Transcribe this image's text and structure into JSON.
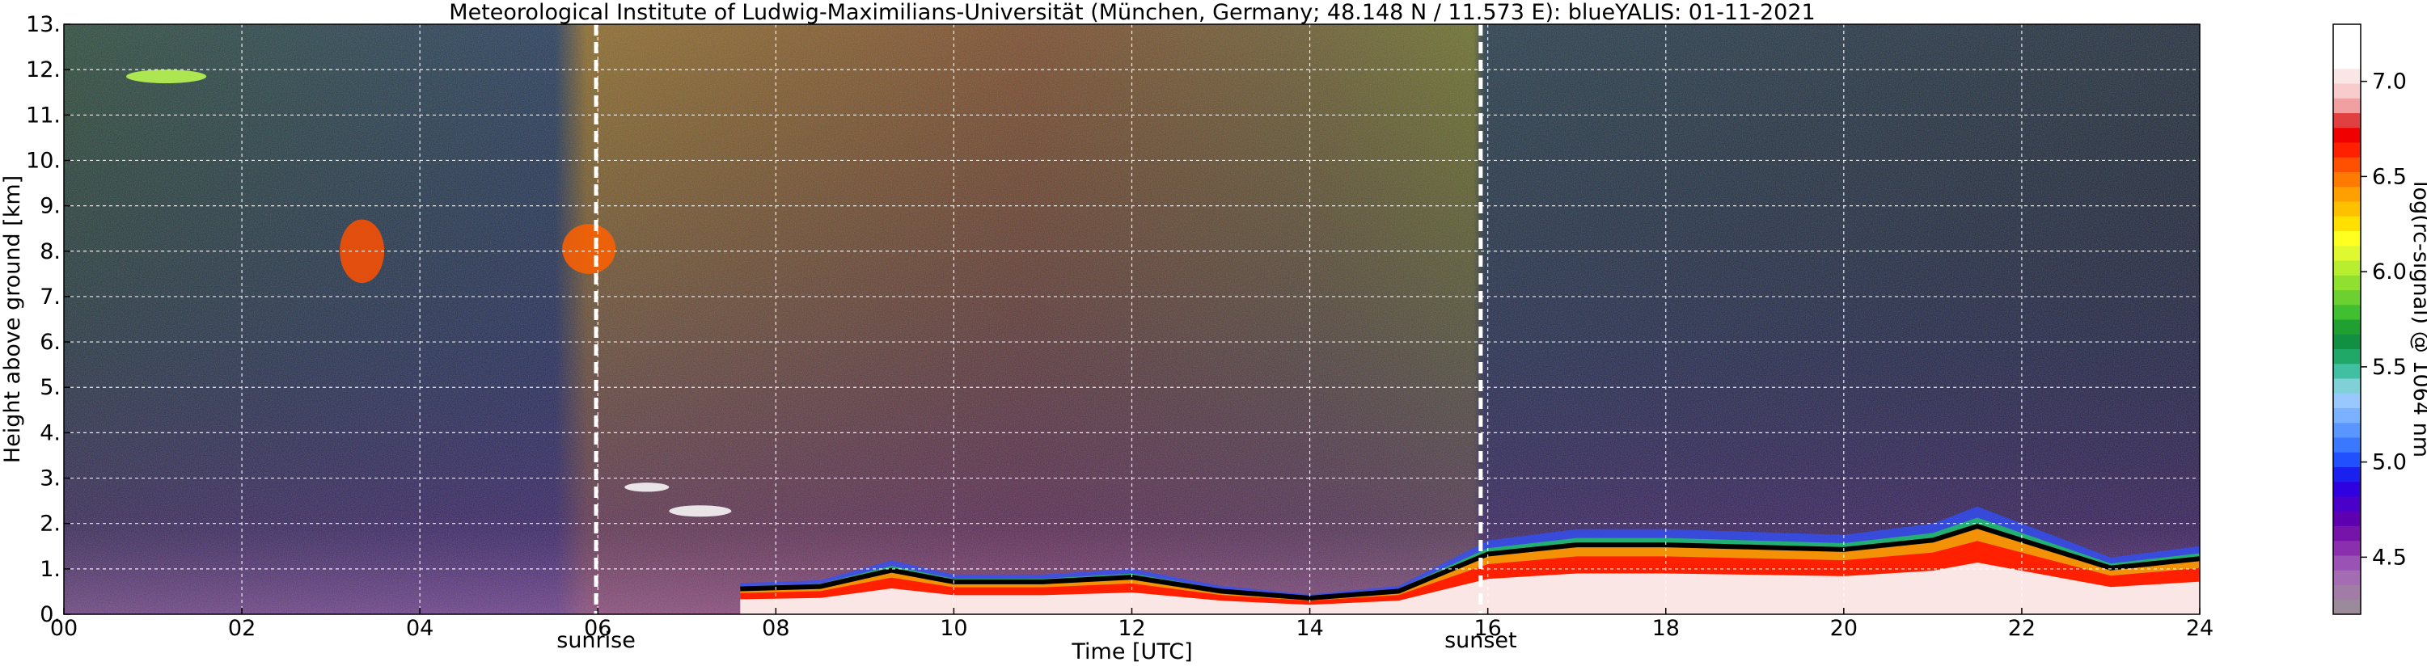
{
  "chart_data": {
    "type": "heatmap",
    "title": "Meteorological Institute of Ludwig-Maximilians-Universität (München, Germany; 48.148 N / 11.573 E):     blueYALIS: 01-11-2021",
    "xlabel": "Time [UTC]",
    "ylabel": "Height above ground [km]",
    "xlim": [
      0,
      24
    ],
    "ylim": [
      0,
      13
    ],
    "x_ticks": [
      {
        "value": 0,
        "label": "00"
      },
      {
        "value": 2,
        "label": "02"
      },
      {
        "value": 4,
        "label": "04"
      },
      {
        "value": 6,
        "label": "06"
      },
      {
        "value": 8,
        "label": "08"
      },
      {
        "value": 10,
        "label": "10"
      },
      {
        "value": 12,
        "label": "12"
      },
      {
        "value": 14,
        "label": "14"
      },
      {
        "value": 16,
        "label": "16"
      },
      {
        "value": 18,
        "label": "18"
      },
      {
        "value": 20,
        "label": "20"
      },
      {
        "value": 22,
        "label": "22"
      },
      {
        "value": 24,
        "label": "24"
      }
    ],
    "y_ticks": [
      {
        "value": 0,
        "label": "0."
      },
      {
        "value": 1,
        "label": "1."
      },
      {
        "value": 2,
        "label": "2."
      },
      {
        "value": 3,
        "label": "3."
      },
      {
        "value": 4,
        "label": "4."
      },
      {
        "value": 5,
        "label": "5."
      },
      {
        "value": 6,
        "label": "6."
      },
      {
        "value": 7,
        "label": "7."
      },
      {
        "value": 8,
        "label": "8."
      },
      {
        "value": 9,
        "label": "9."
      },
      {
        "value": 10,
        "label": "10."
      },
      {
        "value": 11,
        "label": "11."
      },
      {
        "value": 12,
        "label": "12."
      },
      {
        "value": 13,
        "label": "13."
      }
    ],
    "grid": true,
    "markers": [
      {
        "x": 5.98,
        "label": "sunrise"
      },
      {
        "x": 15.92,
        "label": "sunset"
      }
    ],
    "colorbar": {
      "label": "log(rc-signal) @ 1064 nm",
      "min": 4.2,
      "max": 7.3,
      "ticks": [
        {
          "value": 4.5,
          "label": "4.5"
        },
        {
          "value": 5.0,
          "label": "5.0"
        },
        {
          "value": 5.5,
          "label": "5.5"
        },
        {
          "value": 6.0,
          "label": "6.0"
        },
        {
          "value": 6.5,
          "label": "6.5"
        },
        {
          "value": 7.0,
          "label": "7.0"
        }
      ],
      "colors": [
        "#9a8a9a",
        "#a07ca6",
        "#a46cb2",
        "#9a52b4",
        "#8a2fae",
        "#7613a8",
        "#5f00b0",
        "#4a00c8",
        "#2f00e0",
        "#1a20f0",
        "#2050ff",
        "#3a78ff",
        "#5a96ff",
        "#7ab2ff",
        "#98c8ff",
        "#80d0d8",
        "#40c0a0",
        "#20a868",
        "#109040",
        "#20a030",
        "#40c030",
        "#6cd030",
        "#90e030",
        "#b8ee30",
        "#e0f830",
        "#ffff20",
        "#ffe000",
        "#ffc000",
        "#ffa000",
        "#ff7a00",
        "#ff5000",
        "#ff2000",
        "#f00000",
        "#e04040",
        "#f0a0a0",
        "#f8cccc",
        "#fbe6e6",
        "#ffffff",
        "#ffffff",
        "#ffffff"
      ]
    },
    "features": [
      {
        "name": "cirrus",
        "x0": 3.1,
        "x1": 3.6,
        "y0": 7.3,
        "y1": 8.7,
        "color": "#ff5000"
      },
      {
        "name": "cirrus",
        "x0": 5.6,
        "x1": 6.2,
        "y0": 7.5,
        "y1": 8.6,
        "color": "#ff6000"
      },
      {
        "name": "thin-cloud",
        "x0": 0.7,
        "x1": 1.6,
        "y0": 11.7,
        "y1": 12.0,
        "color": "#c0ff50"
      },
      {
        "name": "low-cloud",
        "x0": 6.3,
        "x1": 6.8,
        "y0": 2.7,
        "y1": 2.9,
        "color": "#ffffff"
      },
      {
        "name": "low-cloud",
        "x0": 6.8,
        "x1": 7.5,
        "y0": 2.15,
        "y1": 2.4,
        "color": "#ffffff"
      }
    ],
    "boundary_layer_top": [
      [
        7.6,
        0.55
      ],
      [
        8.5,
        0.6
      ],
      [
        9.3,
        0.95
      ],
      [
        10.0,
        0.7
      ],
      [
        11.0,
        0.7
      ],
      [
        12.0,
        0.8
      ],
      [
        13.0,
        0.5
      ],
      [
        14.0,
        0.35
      ],
      [
        15.0,
        0.5
      ],
      [
        16.0,
        1.3
      ],
      [
        17.0,
        1.5
      ],
      [
        18.0,
        1.5
      ],
      [
        19.0,
        1.45
      ],
      [
        20.0,
        1.4
      ],
      [
        21.0,
        1.6
      ],
      [
        21.5,
        1.9
      ],
      [
        22.0,
        1.6
      ],
      [
        23.0,
        1.0
      ],
      [
        24.0,
        1.2
      ]
    ]
  }
}
